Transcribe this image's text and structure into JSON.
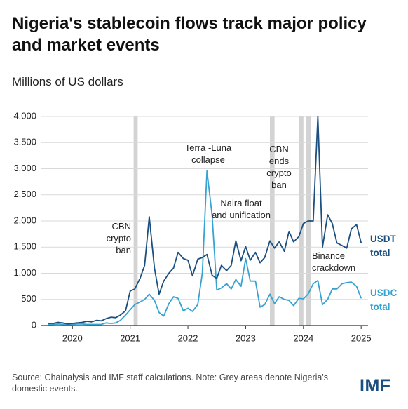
{
  "chart_data": {
    "type": "line",
    "title": "Nigeria's stablecoin flows track major policy and market events",
    "subtitle": "Millions of US dollars",
    "x": [
      2019.58,
      2019.67,
      2019.75,
      2019.83,
      2019.92,
      2020.0,
      2020.08,
      2020.17,
      2020.25,
      2020.33,
      2020.42,
      2020.5,
      2020.58,
      2020.67,
      2020.75,
      2020.83,
      2020.92,
      2021.0,
      2021.08,
      2021.17,
      2021.25,
      2021.33,
      2021.42,
      2021.5,
      2021.58,
      2021.67,
      2021.75,
      2021.83,
      2021.92,
      2022.0,
      2022.08,
      2022.17,
      2022.25,
      2022.33,
      2022.42,
      2022.5,
      2022.58,
      2022.67,
      2022.75,
      2022.83,
      2022.92,
      2023.0,
      2023.08,
      2023.17,
      2023.25,
      2023.33,
      2023.42,
      2023.5,
      2023.58,
      2023.67,
      2023.75,
      2023.83,
      2023.92,
      2024.0,
      2024.08,
      2024.17,
      2024.25,
      2024.33,
      2024.42,
      2024.5,
      2024.58,
      2024.67,
      2024.75,
      2024.83,
      2024.92,
      2025.0
    ],
    "series": [
      {
        "name": "USDT total",
        "color": "#1a4f7f",
        "values": [
          40,
          40,
          60,
          50,
          30,
          40,
          50,
          60,
          80,
          70,
          100,
          90,
          130,
          160,
          150,
          200,
          280,
          660,
          700,
          900,
          1150,
          2080,
          1100,
          600,
          850,
          1000,
          1100,
          1400,
          1280,
          1250,
          950,
          1270,
          1300,
          1360,
          960,
          900,
          1150,
          1050,
          1150,
          1620,
          1240,
          1510,
          1250,
          1400,
          1200,
          1300,
          1620,
          1480,
          1600,
          1420,
          1800,
          1600,
          1700,
          1950,
          2000,
          2000,
          4000,
          1500,
          2120,
          1950,
          1580,
          1530,
          1480,
          1850,
          1930,
          1580
        ]
      },
      {
        "name": "USDC total",
        "color": "#36a3d3",
        "values": [
          20,
          20,
          30,
          20,
          20,
          20,
          30,
          30,
          20,
          20,
          20,
          20,
          50,
          40,
          50,
          100,
          200,
          300,
          400,
          450,
          500,
          600,
          480,
          250,
          180,
          420,
          550,
          520,
          280,
          330,
          270,
          400,
          1000,
          2960,
          2100,
          680,
          720,
          800,
          700,
          880,
          750,
          1280,
          850,
          850,
          350,
          400,
          600,
          420,
          550,
          500,
          480,
          380,
          520,
          510,
          600,
          800,
          860,
          400,
          500,
          700,
          700,
          800,
          820,
          830,
          750,
          520
        ]
      }
    ],
    "xlim": [
      2019.45,
      2025.18
    ],
    "xticks": [
      2020,
      2021,
      2022,
      2023,
      2024,
      2025
    ],
    "ylim": [
      0,
      4000
    ],
    "yticks": [
      0,
      500,
      {
        "value": 1000,
        "label": "1,000"
      },
      {
        "value": 1500,
        "label": "1,500"
      },
      {
        "value": 2000,
        "label": "2,000"
      },
      {
        "value": 2500,
        "label": "2,500"
      },
      {
        "value": 3000,
        "label": "3,000"
      },
      {
        "value": 3500,
        "label": "3,500"
      },
      {
        "value": 4000,
        "label": "4,000"
      }
    ],
    "grid": true,
    "shaded_regions": [
      [
        2021.06,
        2021.13
      ],
      [
        2023.42,
        2023.5
      ],
      [
        2023.92,
        2024.0
      ],
      [
        2024.05,
        2024.13
      ]
    ],
    "annotations": [
      "CBN crypto ban",
      "Terra -Luna collapse",
      "Naira float and unification",
      "CBN ends crypto ban",
      "Binance crackdown"
    ],
    "source": "Source: Chainalysis and IMF staff calculations. Note: Grey areas denote Nigeria's domestic events.",
    "logo": "IMF"
  }
}
